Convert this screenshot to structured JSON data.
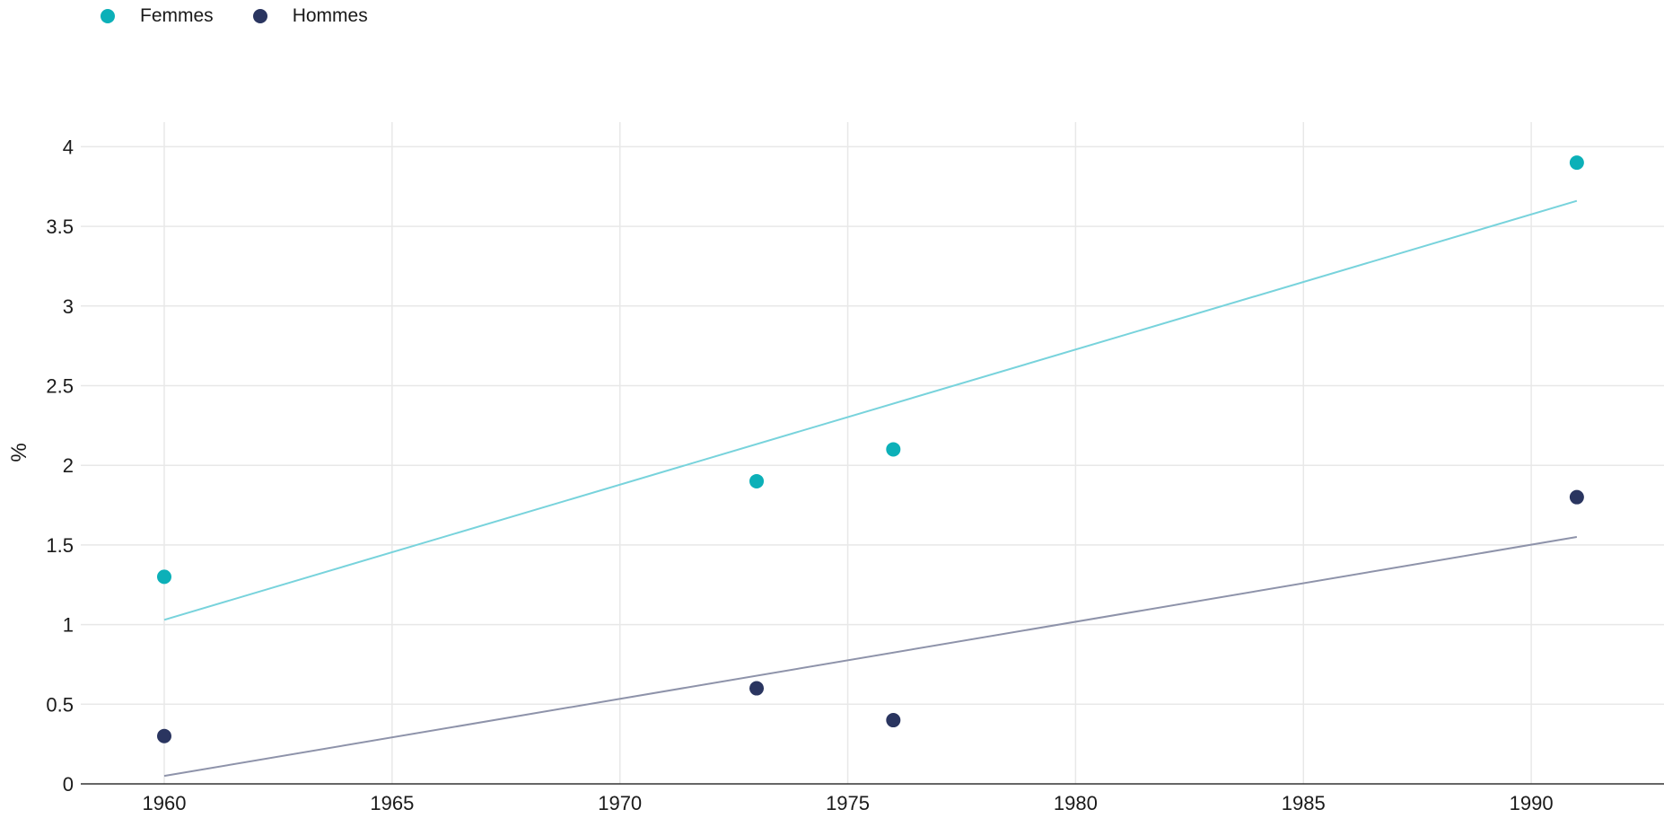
{
  "chart_data": {
    "type": "scatter",
    "ylabel": "%",
    "xlim": [
      1958.2,
      1993
    ],
    "ylim": [
      0,
      4.15
    ],
    "x_ticks": [
      "1960",
      "1965",
      "1970",
      "1975",
      "1980",
      "1985",
      "1990"
    ],
    "y_ticks": [
      "0",
      "0.5",
      "1",
      "1.5",
      "2",
      "2.5",
      "3",
      "3.5",
      "4"
    ],
    "grid": true,
    "legend_position": "top-left",
    "series": [
      {
        "name": "Femmes",
        "color": "#0cb0b8",
        "trend_color": "#78d3dc",
        "x": [
          1960,
          1973,
          1976,
          1991
        ],
        "y": [
          1.3,
          1.9,
          2.1,
          3.9
        ],
        "trend": {
          "x": [
            1960,
            1991
          ],
          "y": [
            1.03,
            3.66
          ]
        }
      },
      {
        "name": "Hommes",
        "color": "#2a3560",
        "trend_color": "#8e93aa",
        "x": [
          1960,
          1973,
          1976,
          1991
        ],
        "y": [
          0.3,
          0.6,
          0.4,
          1.8
        ],
        "trend": {
          "x": [
            1960,
            1991
          ],
          "y": [
            0.05,
            1.55
          ]
        }
      }
    ]
  }
}
